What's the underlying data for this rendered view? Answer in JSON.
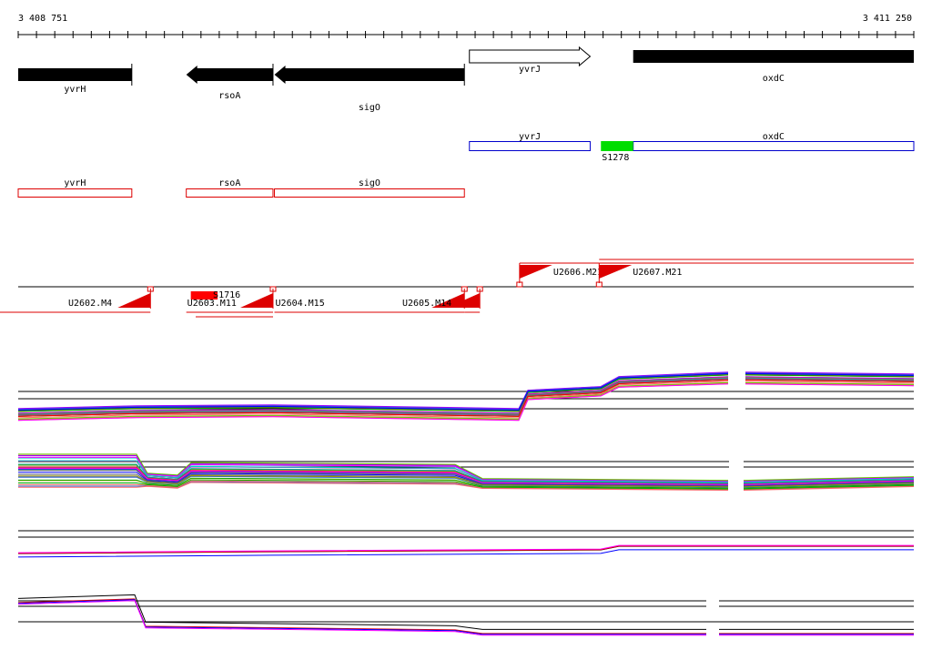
{
  "ruler": {
    "start_label": "3 408 751",
    "end_label": "3 411 250",
    "start": 3408751,
    "end": 3411250
  },
  "genes": [
    {
      "label": "yvrH",
      "strand": "-",
      "style": "solid",
      "start": 3408751,
      "end": 3409068
    },
    {
      "label": "rsoA",
      "strand": "-",
      "style": "solid",
      "start": 3409220,
      "end": 3409462
    },
    {
      "label": "sigO",
      "strand": "-",
      "style": "solid",
      "start": 3409466,
      "end": 3409996
    },
    {
      "label": "yvrJ",
      "strand": "+",
      "style": "open",
      "start": 3410010,
      "end": 3410347
    },
    {
      "label": "oxdC",
      "strand": "+",
      "style": "solid",
      "start": 3410467,
      "end": 3411250
    }
  ],
  "plus_transcripts": [
    {
      "label": "yvrJ",
      "start": 3410010,
      "end": 3410347
    },
    {
      "label": "oxdC",
      "start": 3410467,
      "end": 3411250
    }
  ],
  "plus_features": [
    {
      "label": "S1278",
      "start": 3410377,
      "end": 3410467,
      "color": "#00dd00"
    }
  ],
  "minus_transcripts": [
    {
      "label": "yvrH",
      "start": 3408751,
      "end": 3409068
    },
    {
      "label": "rsoA",
      "start": 3409220,
      "end": 3409462
    },
    {
      "label": "sigO",
      "start": 3409466,
      "end": 3409996
    }
  ],
  "upper_segments": [
    {
      "label": "U2606.M21",
      "start": 3410150,
      "end": 3410372
    },
    {
      "label": "U2607.M21",
      "start": 3410372,
      "end": 3411250
    }
  ],
  "lower_segments": [
    {
      "label": "U2602.M4",
      "start": 3408751,
      "end": 3409120
    },
    {
      "label": "U2603.M11",
      "start": 3409220,
      "end": 3409462
    },
    {
      "label": "U2604.M15",
      "start": 3409466,
      "end": 3409996
    },
    {
      "label": "U2605.M14",
      "start": 3409996,
      "end": 3410039
    }
  ],
  "lower_features": [
    {
      "label": "S1716",
      "start": 3409220,
      "end": 3409320,
      "color": "#ff0000"
    }
  ],
  "colors": {
    "gene_fill": "#000000",
    "plus_strand": "#0000cc",
    "minus_strand": "#dd0000",
    "segment": "#dd0000",
    "baseline": "#000000"
  }
}
